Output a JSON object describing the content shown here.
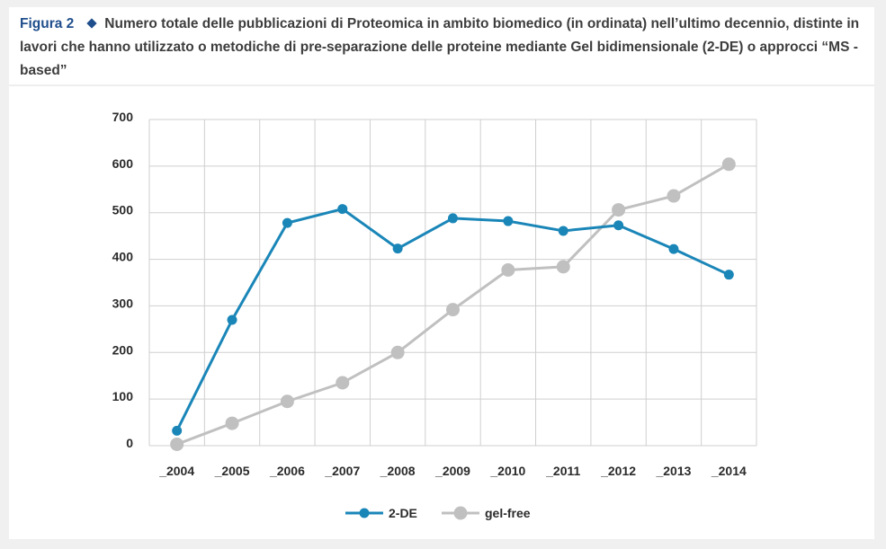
{
  "caption": {
    "figure_label": "Figura 2",
    "text": "Numero totale delle pubblicazioni di Proteomica in ambito biomedico (in ordinata) nell’ultimo decennio, distinte in lavori che hanno utilizzato o metodiche di pre-separazione delle proteine mediante Gel bidimensionale (2-DE) o approcci “MS -based”"
  },
  "chart_data": {
    "type": "line",
    "categories": [
      "_2004",
      "_2005",
      "_2006",
      "_2007",
      "_2008",
      "_2009",
      "_2010",
      "_2011",
      "_2012",
      "_2013",
      "_2014"
    ],
    "y_ticks": [
      "0",
      "100",
      "200",
      "300",
      "400",
      "500",
      "600",
      "700"
    ],
    "ylim": [
      0,
      700
    ],
    "grid": true,
    "legend_position": "bottom-center",
    "series": [
      {
        "name": "2-DE",
        "color": "#1a86b8",
        "values": [
          32,
          270,
          478,
          508,
          423,
          488,
          482,
          461,
          473,
          422,
          367
        ]
      },
      {
        "name": "gel-free",
        "color": "#c0c0c0",
        "values": [
          3,
          48,
          95,
          135,
          200,
          292,
          377,
          384,
          506,
          536,
          604
        ]
      }
    ]
  }
}
